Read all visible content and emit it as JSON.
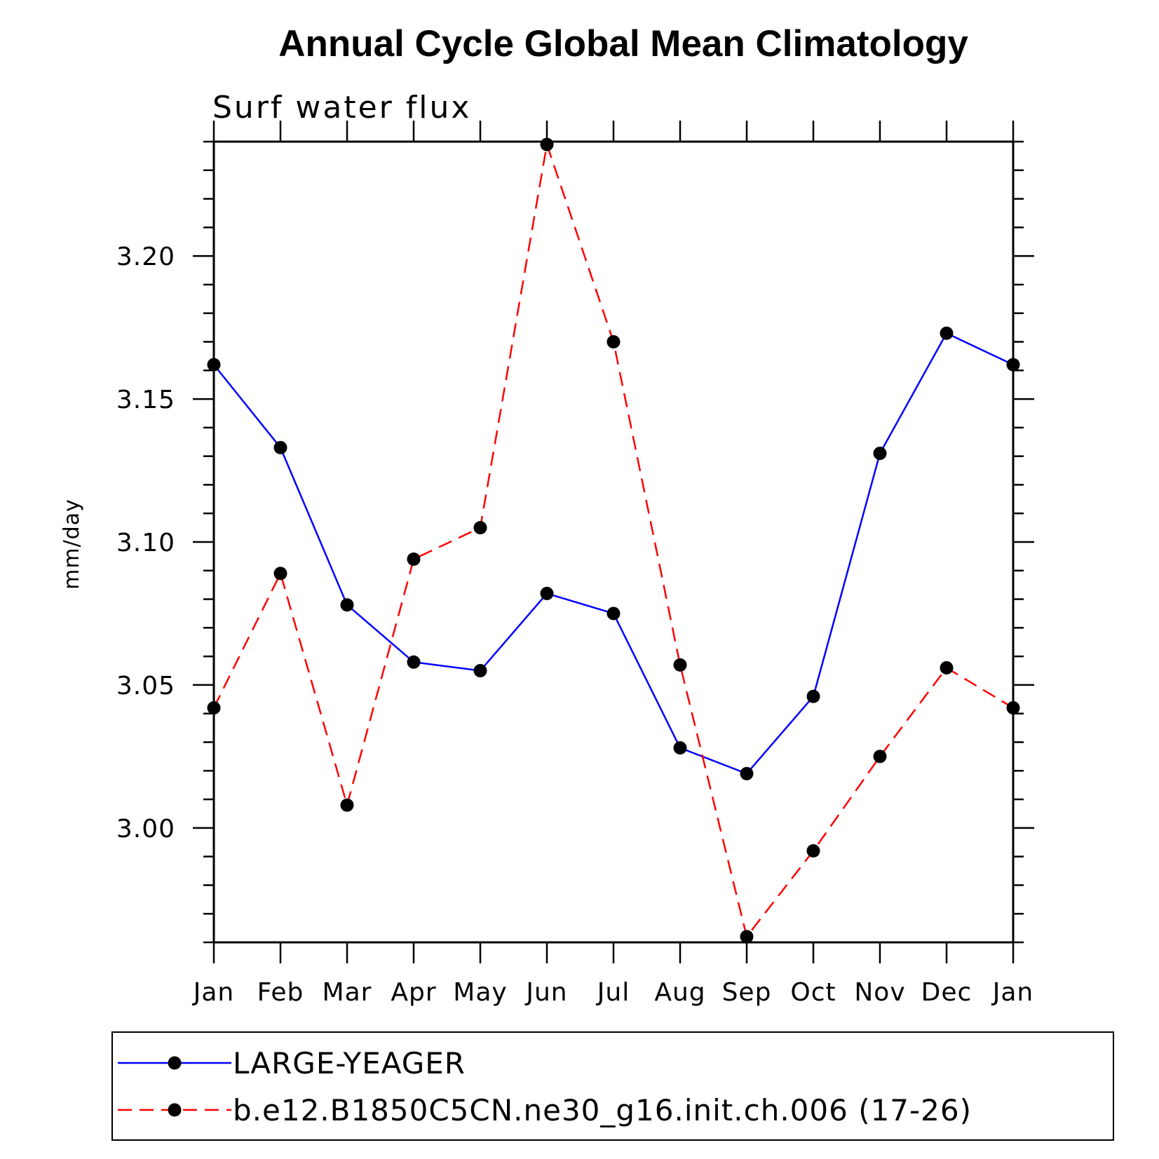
{
  "chart_data": {
    "type": "line",
    "title": "Annual Cycle Global Mean Climatology",
    "subtitle": "Surf water flux",
    "xlabel": "",
    "ylabel": "mm/day",
    "categories": [
      "Jan",
      "Feb",
      "Mar",
      "Apr",
      "May",
      "Jun",
      "Jul",
      "Aug",
      "Sep",
      "Oct",
      "Nov",
      "Dec",
      "Jan"
    ],
    "ylim": [
      2.96,
      3.24
    ],
    "yticks": [
      3.0,
      3.05,
      3.1,
      3.15,
      3.2
    ],
    "ytick_labels": [
      "3.00",
      "3.05",
      "3.10",
      "3.15",
      "3.20"
    ],
    "y_minor_step": 0.01,
    "grid": false,
    "legend_position": "bottom",
    "series": [
      {
        "name": "LARGE-YEAGER",
        "color": "#0000ff",
        "style": "solid",
        "marker": "filled-circle",
        "values": [
          3.162,
          3.133,
          3.078,
          3.058,
          3.055,
          3.082,
          3.075,
          3.028,
          3.019,
          3.046,
          3.131,
          3.173,
          3.162
        ]
      },
      {
        "name": "b.e12.B1850C5CN.ne30_g16.init.ch.006 (17-26)",
        "color": "#ff0000",
        "style": "dashed",
        "marker": "filled-circle",
        "values": [
          3.042,
          3.089,
          3.008,
          3.094,
          3.105,
          3.239,
          3.17,
          3.057,
          2.962,
          2.992,
          3.025,
          3.056,
          3.042
        ]
      }
    ]
  }
}
